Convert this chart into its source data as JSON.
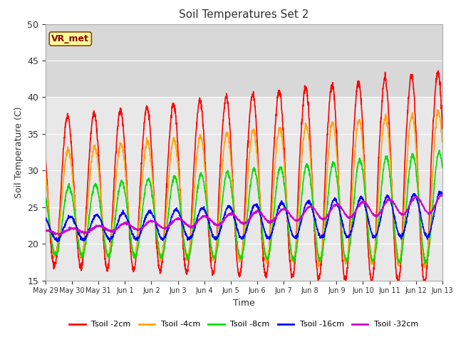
{
  "title": "Soil Temperatures Set 2",
  "xlabel": "Time",
  "ylabel": "Soil Temperature (C)",
  "ylim": [
    15,
    50
  ],
  "plot_bg_color": "#e8e8e8",
  "shaded_band": [
    40,
    50
  ],
  "shaded_band_color": "#d8d8d8",
  "annotation_text": "VR_met",
  "annotation_color": "#8B0000",
  "annotation_bg": "#ffff99",
  "annotation_border": "#8B4513",
  "series": [
    {
      "label": "Tsoil -2cm",
      "color": "#ff0000"
    },
    {
      "label": "Tsoil -4cm",
      "color": "#ffa500"
    },
    {
      "label": "Tsoil -8cm",
      "color": "#00dd00"
    },
    {
      "label": "Tsoil -16cm",
      "color": "#0000ff"
    },
    {
      "label": "Tsoil -32cm",
      "color": "#cc00cc"
    }
  ],
  "xtick_labels": [
    "May 29",
    "May 30",
    "May 31",
    "Jun 1",
    "Jun 2",
    "Jun 3",
    "Jun 4",
    "Jun 5",
    "Jun 6",
    "Jun 7",
    "Jun 8",
    "Jun 9",
    "Jun 10",
    "Jun 11",
    "Jun 12",
    "Jun 13"
  ],
  "grid_color": "#ffffff",
  "linewidth": 1.2
}
